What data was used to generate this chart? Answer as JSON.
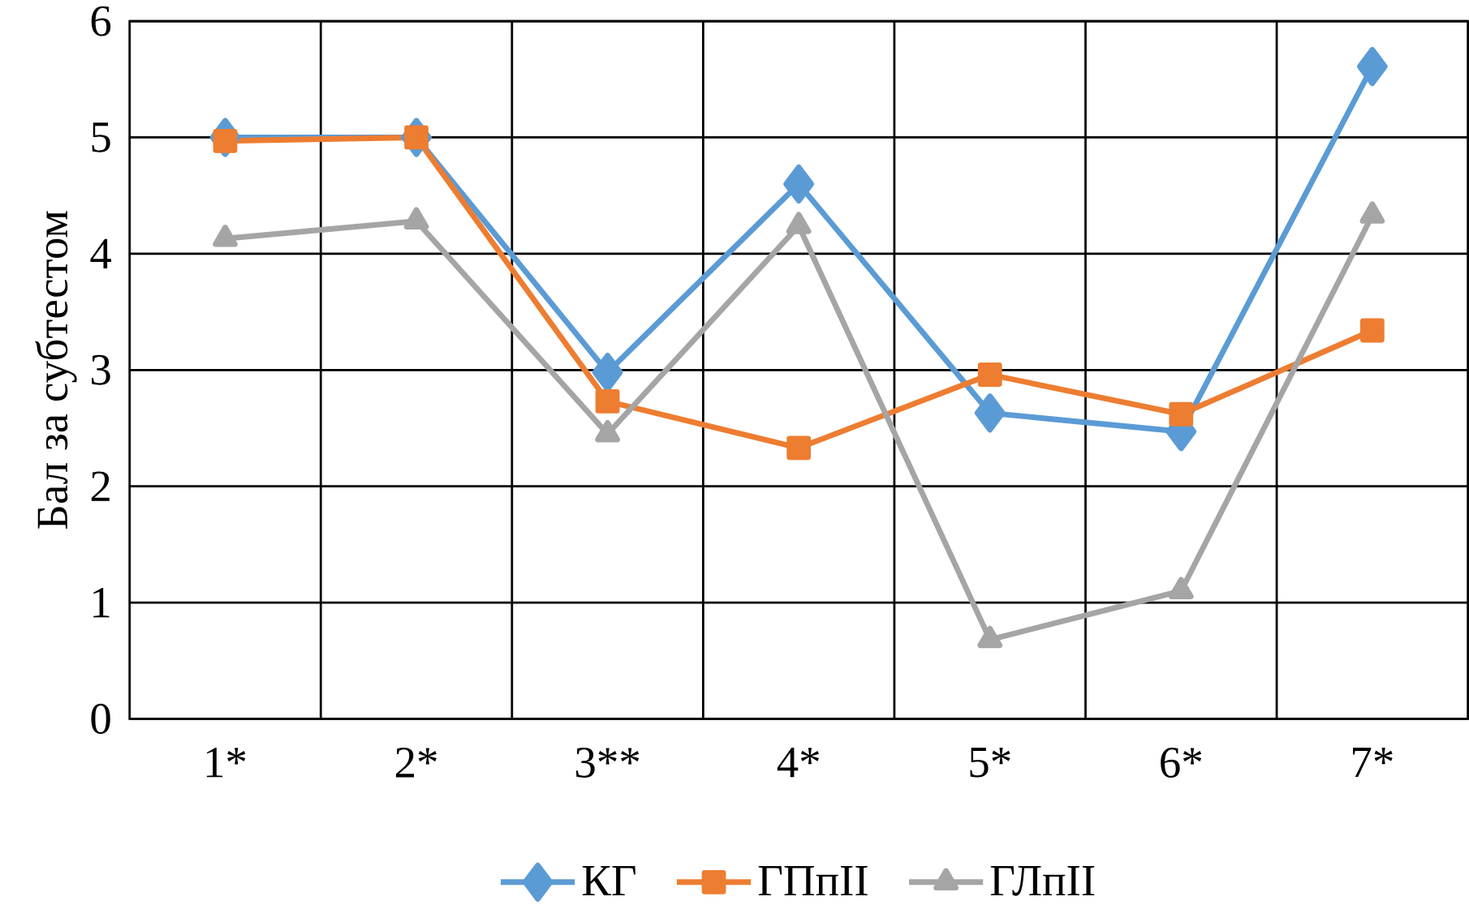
{
  "chart_data": {
    "type": "line",
    "ylabel": "Бал за субтестом",
    "categories": [
      "1*",
      "2*",
      "3**",
      "4*",
      "5*",
      "6*",
      "7*"
    ],
    "series": [
      {
        "name": "КГ",
        "color": "#5b9bd5",
        "marker": "diamond",
        "values": [
          5.0,
          5.0,
          2.98,
          4.6,
          2.63,
          2.47,
          5.61
        ]
      },
      {
        "name": "ГПпІІ",
        "color": "#ed7d31",
        "marker": "square",
        "values": [
          4.97,
          5.0,
          2.73,
          2.33,
          2.96,
          2.62,
          3.34
        ]
      },
      {
        "name": "ГЛпІІ",
        "color": "#a5a5a5",
        "marker": "triangle",
        "values": [
          4.13,
          4.28,
          2.45,
          4.24,
          0.68,
          1.1,
          4.33
        ]
      }
    ],
    "ylim": [
      0,
      6
    ],
    "yticks": [
      0,
      1,
      2,
      3,
      4,
      5,
      6
    ],
    "grid": true,
    "legend": "bottom",
    "line_style": "solid"
  }
}
